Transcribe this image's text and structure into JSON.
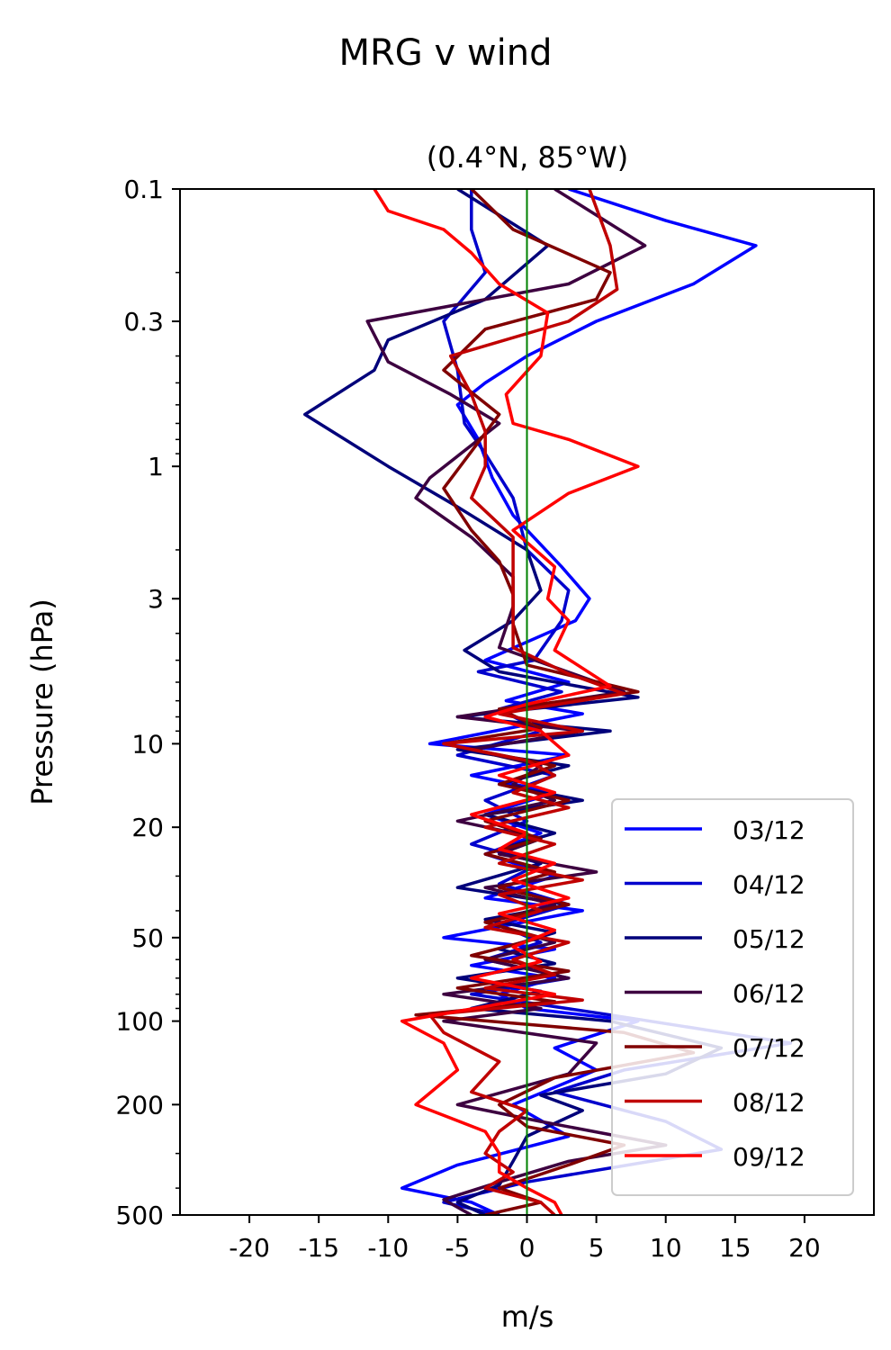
{
  "chart_data": {
    "type": "line",
    "title": "MRG v wind",
    "subtitle": "(0.4°N, 85°W)",
    "xlabel": "m/s",
    "ylabel": "Pressure (hPa)",
    "xlim": [
      -25,
      25
    ],
    "ylim": [
      500,
      0.1
    ],
    "y_scale": "log",
    "x_ticks": [
      -20,
      -15,
      -10,
      -5,
      0,
      5,
      10,
      15,
      20
    ],
    "x_tick_labels": [
      "-20",
      "-15",
      "-10",
      "-5",
      "0",
      "5",
      "10",
      "15",
      "20"
    ],
    "y_ticks": [
      0.1,
      0.3,
      1,
      3,
      10,
      20,
      50,
      100,
      200,
      500
    ],
    "y_tick_labels": [
      "0.1",
      "0.3",
      "1",
      "3",
      "10",
      "20",
      "50",
      "100",
      "200",
      "500"
    ],
    "grid": false,
    "legend_position": "lower-right",
    "zero_line_color": "#008000",
    "series": [
      {
        "name": "03/12",
        "color": "#0000ff",
        "points": [
          [
            3,
            0.1
          ],
          [
            10,
            0.13
          ],
          [
            16.5,
            0.16
          ],
          [
            12,
            0.22
          ],
          [
            5,
            0.3
          ],
          [
            0,
            0.4
          ],
          [
            -3,
            0.5
          ],
          [
            -5,
            0.6
          ],
          [
            -3.5,
            0.8
          ],
          [
            -2.5,
            1.1
          ],
          [
            -1,
            1.5
          ],
          [
            2.5,
            2.3
          ],
          [
            4.5,
            3.0
          ],
          [
            3.5,
            3.6
          ],
          [
            -3,
            5.0
          ],
          [
            3,
            6.0
          ],
          [
            -1.5,
            7.0
          ],
          [
            4,
            7.8
          ],
          [
            -7,
            10
          ],
          [
            3,
            11
          ],
          [
            -4,
            13
          ],
          [
            2,
            15
          ],
          [
            -3,
            18
          ],
          [
            1,
            21
          ],
          [
            -3,
            25
          ],
          [
            2,
            30
          ],
          [
            -3,
            36
          ],
          [
            4,
            40
          ],
          [
            -6,
            50
          ],
          [
            2,
            55
          ],
          [
            -4,
            63
          ],
          [
            2,
            70
          ],
          [
            -2,
            80
          ],
          [
            0,
            90
          ],
          [
            8,
            100
          ],
          [
            2,
            125
          ],
          [
            5,
            150
          ],
          [
            -1,
            200
          ],
          [
            3,
            260
          ],
          [
            -5,
            330
          ],
          [
            -9,
            400
          ],
          [
            -4,
            450
          ],
          [
            -2,
            500
          ]
        ]
      },
      {
        "name": "04/12",
        "color": "#0000cc",
        "points": [
          [
            -4,
            0.1
          ],
          [
            -4,
            0.14
          ],
          [
            -3,
            0.2
          ],
          [
            -6,
            0.3
          ],
          [
            -5,
            0.45
          ],
          [
            -4.5,
            0.7
          ],
          [
            -3,
            0.9
          ],
          [
            -1,
            1.3
          ],
          [
            0,
            2
          ],
          [
            3,
            2.8
          ],
          [
            2.5,
            3.6
          ],
          [
            0.5,
            5.0
          ],
          [
            -3.5,
            5.5
          ],
          [
            2.5,
            6.5
          ],
          [
            -2,
            7.5
          ],
          [
            1,
            9
          ],
          [
            -5,
            11
          ],
          [
            2,
            13
          ],
          [
            -3,
            16
          ],
          [
            0,
            19
          ],
          [
            -4,
            23
          ],
          [
            1,
            27
          ],
          [
            -2,
            32
          ],
          [
            3,
            38
          ],
          [
            -2,
            45
          ],
          [
            1,
            52
          ],
          [
            -3,
            60
          ],
          [
            3,
            70
          ],
          [
            -4,
            80
          ],
          [
            6,
            95
          ],
          [
            19,
            120
          ],
          [
            7,
            150
          ],
          [
            2,
            180
          ],
          [
            10,
            230
          ],
          [
            14,
            290
          ],
          [
            0,
            380
          ],
          [
            -6,
            450
          ],
          [
            -2,
            500
          ]
        ]
      },
      {
        "name": "05/12",
        "color": "#00007a",
        "points": [
          [
            -5,
            0.1
          ],
          [
            1.5,
            0.16
          ],
          [
            -3,
            0.25
          ],
          [
            -10,
            0.35
          ],
          [
            -11,
            0.45
          ],
          [
            -16,
            0.65
          ],
          [
            -10,
            1.0
          ],
          [
            -5,
            1.4
          ],
          [
            0,
            2.0
          ],
          [
            1,
            2.8
          ],
          [
            -1,
            3.6
          ],
          [
            -4.5,
            4.6
          ],
          [
            -2,
            5.5
          ],
          [
            8,
            6.8
          ],
          [
            -5,
            8
          ],
          [
            6,
            9
          ],
          [
            -5,
            10.5
          ],
          [
            3,
            12
          ],
          [
            -2,
            14
          ],
          [
            4,
            16
          ],
          [
            -3,
            18
          ],
          [
            2,
            21
          ],
          [
            -2,
            24
          ],
          [
            1,
            27
          ],
          [
            -5,
            33
          ],
          [
            3,
            38
          ],
          [
            -3,
            43
          ],
          [
            2,
            48
          ],
          [
            -2,
            55
          ],
          [
            2,
            62
          ],
          [
            -5,
            70
          ],
          [
            1,
            78
          ],
          [
            -4,
            90
          ],
          [
            6,
            100
          ],
          [
            14,
            125
          ],
          [
            10,
            155
          ],
          [
            1,
            185
          ],
          [
            4,
            210
          ],
          [
            0,
            260
          ],
          [
            -1,
            320
          ],
          [
            -2,
            390
          ],
          [
            -5,
            450
          ],
          [
            -3,
            500
          ]
        ]
      },
      {
        "name": "06/12",
        "color": "#3d0040",
        "points": [
          [
            2,
            0.1
          ],
          [
            8.5,
            0.16
          ],
          [
            3,
            0.22
          ],
          [
            -11.5,
            0.3
          ],
          [
            -10,
            0.42
          ],
          [
            -5.5,
            0.55
          ],
          [
            -2,
            0.7
          ],
          [
            -7,
            1.1
          ],
          [
            -8,
            1.3
          ],
          [
            -4,
            1.8
          ],
          [
            -1,
            2.5
          ],
          [
            -1,
            3.2
          ],
          [
            -2,
            4.5
          ],
          [
            7,
            6.5
          ],
          [
            -5,
            8
          ],
          [
            4,
            9
          ],
          [
            -4,
            10.5
          ],
          [
            1,
            12
          ],
          [
            -1,
            14
          ],
          [
            2,
            16
          ],
          [
            -5,
            19
          ],
          [
            1,
            22
          ],
          [
            -2,
            25
          ],
          [
            5,
            29
          ],
          [
            -3,
            33
          ],
          [
            2,
            38
          ],
          [
            -3,
            44
          ],
          [
            2,
            52
          ],
          [
            -3,
            60
          ],
          [
            3,
            70
          ],
          [
            -6,
            80
          ],
          [
            1,
            90
          ],
          [
            -6,
            100
          ],
          [
            5,
            120
          ],
          [
            3,
            155
          ],
          [
            -5,
            200
          ],
          [
            1,
            230
          ],
          [
            10,
            280
          ],
          [
            3,
            320
          ],
          [
            -2,
            380
          ],
          [
            -6,
            440
          ],
          [
            -4,
            500
          ]
        ]
      },
      {
        "name": "07/12",
        "color": "#800000",
        "points": [
          [
            -4,
            0.1
          ],
          [
            -1,
            0.14
          ],
          [
            6,
            0.2
          ],
          [
            5,
            0.25
          ],
          [
            -3,
            0.32
          ],
          [
            -6,
            0.45
          ],
          [
            -2,
            0.65
          ],
          [
            -6,
            1.2
          ],
          [
            -4,
            1.7
          ],
          [
            -2,
            2.2
          ],
          [
            -1,
            2.9
          ],
          [
            -1,
            3.7
          ],
          [
            0,
            5.2
          ],
          [
            8,
            6.5
          ],
          [
            -2,
            7.5
          ],
          [
            1,
            8.8
          ],
          [
            -6,
            10
          ],
          [
            2,
            12
          ],
          [
            -2,
            14
          ],
          [
            3,
            16
          ],
          [
            -3,
            19
          ],
          [
            1,
            22
          ],
          [
            -3,
            25
          ],
          [
            2,
            29
          ],
          [
            -2,
            33
          ],
          [
            3,
            38
          ],
          [
            -3,
            44
          ],
          [
            1,
            50
          ],
          [
            -4,
            58
          ],
          [
            3,
            66
          ],
          [
            -5,
            76
          ],
          [
            2,
            85
          ],
          [
            -8,
            95
          ],
          [
            7,
            110
          ],
          [
            12,
            130
          ],
          [
            2,
            160
          ],
          [
            -2,
            200
          ],
          [
            0,
            240
          ],
          [
            7,
            280
          ],
          [
            3,
            330
          ],
          [
            -2,
            400
          ],
          [
            1,
            450
          ],
          [
            -3,
            500
          ]
        ]
      },
      {
        "name": "08/12",
        "color": "#c00000",
        "points": [
          [
            4.5,
            0.1
          ],
          [
            6,
            0.16
          ],
          [
            6.5,
            0.23
          ],
          [
            3,
            0.3
          ],
          [
            -5.5,
            0.4
          ],
          [
            -4,
            0.55
          ],
          [
            -3,
            0.75
          ],
          [
            -3,
            1.0
          ],
          [
            -4,
            1.3
          ],
          [
            -1,
            1.8
          ],
          [
            -1,
            2.5
          ],
          [
            -1,
            3.4
          ],
          [
            -1,
            4.5
          ],
          [
            3,
            5.6
          ],
          [
            7,
            6.6
          ],
          [
            -2,
            7.8
          ],
          [
            4,
            9
          ],
          [
            -6,
            10
          ],
          [
            0,
            11.5
          ],
          [
            2,
            13
          ],
          [
            -1,
            15
          ],
          [
            3,
            17
          ],
          [
            -3,
            20
          ],
          [
            2,
            23
          ],
          [
            -2,
            27
          ],
          [
            4,
            31
          ],
          [
            -2,
            35
          ],
          [
            1,
            40
          ],
          [
            -3,
            46
          ],
          [
            3,
            52
          ],
          [
            -1,
            60
          ],
          [
            2,
            68
          ],
          [
            -3,
            76
          ],
          [
            4,
            84
          ],
          [
            -7,
            95
          ],
          [
            -6,
            110
          ],
          [
            -2,
            140
          ],
          [
            -4,
            180
          ],
          [
            0,
            210
          ],
          [
            -2,
            250
          ],
          [
            -3,
            300
          ],
          [
            -1,
            350
          ],
          [
            -3,
            400
          ],
          [
            1,
            450
          ],
          [
            2,
            500
          ]
        ]
      },
      {
        "name": "09/12",
        "color": "#ff0000",
        "points": [
          [
            -11,
            0.1
          ],
          [
            -10,
            0.12
          ],
          [
            -6,
            0.14
          ],
          [
            -4,
            0.17
          ],
          [
            -2,
            0.22
          ],
          [
            1.5,
            0.28
          ],
          [
            1,
            0.4
          ],
          [
            -1.5,
            0.55
          ],
          [
            -1,
            0.7
          ],
          [
            3,
            0.8
          ],
          [
            8,
            1.0
          ],
          [
            3,
            1.25
          ],
          [
            -1,
            1.7
          ],
          [
            2,
            2.3
          ],
          [
            1.5,
            3.0
          ],
          [
            3,
            3.6
          ],
          [
            2,
            4.6
          ],
          [
            6,
            6.2
          ],
          [
            0,
            7.2
          ],
          [
            -3,
            8
          ],
          [
            1,
            9
          ],
          [
            3,
            11
          ],
          [
            -2,
            13
          ],
          [
            2,
            15
          ],
          [
            -4,
            18
          ],
          [
            0,
            21
          ],
          [
            -2,
            24
          ],
          [
            2,
            27
          ],
          [
            -1,
            31
          ],
          [
            3,
            36
          ],
          [
            -2,
            41
          ],
          [
            2,
            47
          ],
          [
            -1,
            54
          ],
          [
            1,
            61
          ],
          [
            -4,
            70
          ],
          [
            2,
            80
          ],
          [
            -9,
            100
          ],
          [
            -6,
            120
          ],
          [
            -5,
            150
          ],
          [
            -8,
            200
          ],
          [
            -3,
            250
          ],
          [
            -2,
            300
          ],
          [
            -2,
            350
          ],
          [
            0,
            400
          ],
          [
            2,
            450
          ],
          [
            2.5,
            500
          ]
        ]
      }
    ]
  }
}
